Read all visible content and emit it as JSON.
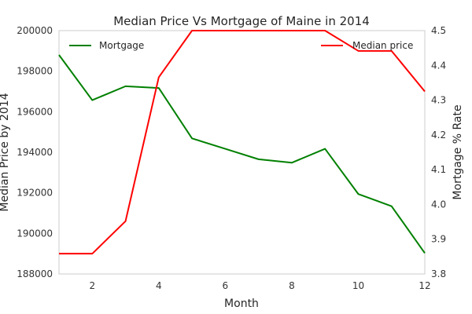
{
  "chart_data": {
    "type": "line",
    "title": "Median Price Vs Mortgage of Maine in 2014",
    "xlabel": "Month",
    "ylabel_left": "Median Price by 2014",
    "ylabel_right": "Mortgage % Rate",
    "xlim": [
      1,
      12
    ],
    "ylim_left": [
      188000,
      200000
    ],
    "ylim_right": [
      3.8,
      4.5
    ],
    "x_ticks": [
      2,
      4,
      6,
      8,
      10,
      12
    ],
    "y_left_ticks": [
      188000,
      190000,
      192000,
      194000,
      196000,
      198000,
      200000
    ],
    "y_right_ticks": [
      3.8,
      3.9,
      4.0,
      4.1,
      4.2,
      4.3,
      4.4,
      4.5
    ],
    "x": [
      1,
      2,
      3,
      4,
      5,
      6,
      7,
      8,
      9,
      10,
      11,
      12
    ],
    "grid": false,
    "series": [
      {
        "name": "Mortgage",
        "axis": "right",
        "color": "#008000",
        "legend_position": "upper-left",
        "values": [
          4.43,
          4.3,
          4.34,
          4.335,
          4.19,
          4.16,
          4.13,
          4.12,
          4.16,
          4.03,
          3.995,
          3.86
        ]
      },
      {
        "name": "Median price",
        "axis": "left",
        "color": "#ff0000",
        "legend_position": "upper-right",
        "values": [
          189000,
          189000,
          190600,
          197700,
          200000,
          200000,
          200000,
          200000,
          200000,
          199000,
          199000,
          197000
        ]
      }
    ]
  }
}
